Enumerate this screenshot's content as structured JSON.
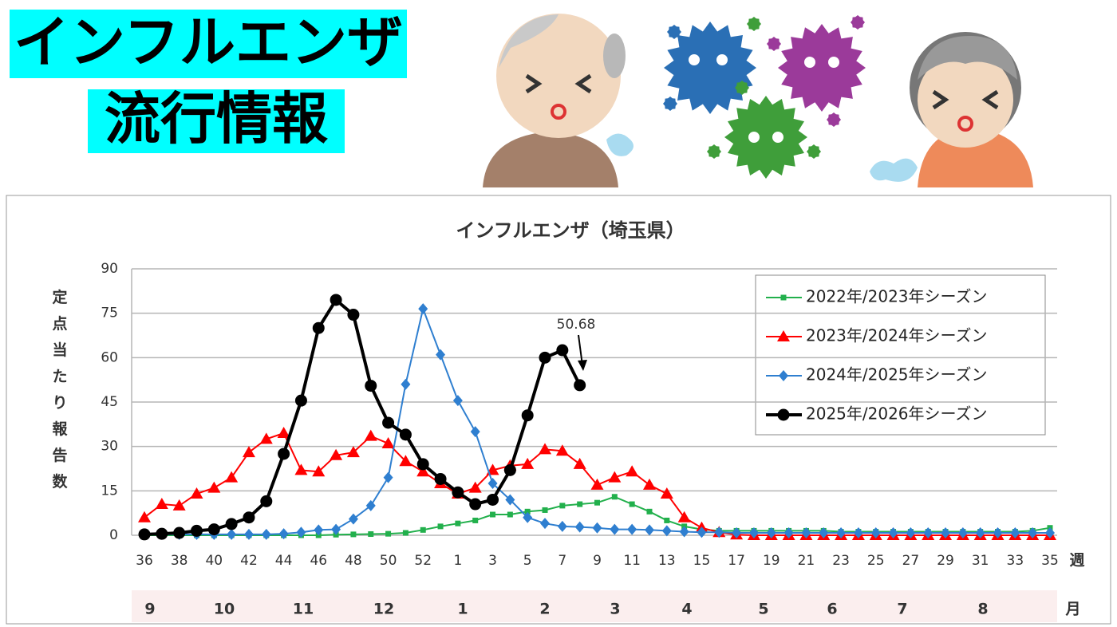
{
  "header": {
    "title": "インフルエンザ",
    "subtitle": "流行情報"
  },
  "chart_data": {
    "type": "line",
    "title": "インフルエンザ（埼玉県）",
    "ylabel": "定点当たり報告数",
    "xlabel": "週",
    "categories": [
      "36",
      null,
      "38",
      null,
      "40",
      null,
      "42",
      null,
      "44",
      null,
      "46",
      null,
      "48",
      null,
      "50",
      null,
      "52",
      null,
      "1",
      null,
      "3",
      null,
      "5",
      null,
      "7",
      null,
      "9",
      null,
      "11",
      null,
      "13",
      null,
      "15",
      null,
      "17",
      null,
      "19",
      null,
      "21",
      null,
      "23",
      null,
      "25",
      null,
      "27",
      null,
      "29",
      null,
      "31",
      null,
      "33",
      null,
      "35"
    ],
    "months": [
      "9",
      "10",
      "11",
      "12",
      "1",
      "2",
      "3",
      "4",
      "5",
      "6",
      "7",
      "8"
    ],
    "months_label": "月",
    "ylim": [
      0,
      90
    ],
    "yticks": [
      0,
      15,
      30,
      45,
      60,
      75,
      90
    ],
    "grid": true,
    "legend": "upper right",
    "series": [
      {
        "name": "2022年/2023年シーズン",
        "color": "#22b04c",
        "marker": "square",
        "values": [
          0,
          0,
          0,
          0,
          0,
          0,
          0,
          0,
          0,
          0,
          0,
          0.2,
          0.3,
          0.4,
          0.5,
          0.8,
          1.8,
          3,
          4,
          5,
          7,
          7,
          8,
          8.5,
          10,
          10.5,
          11,
          13,
          10.5,
          8,
          5,
          3,
          2,
          1.5,
          1.5,
          1.5,
          1.5,
          1.5,
          1.5,
          1.5,
          1.2,
          1.2,
          1.2,
          1.2,
          1.2,
          1.2,
          1.2,
          1.2,
          1.2,
          1.2,
          1.2,
          1.5,
          2.5
        ]
      },
      {
        "name": "2023年/2024年シーズン",
        "color": "#ff0000",
        "marker": "triangle",
        "values": [
          6,
          10.5,
          10,
          14,
          16,
          19.5,
          28,
          32.5,
          34.5,
          22,
          21.5,
          27,
          28,
          33.5,
          31,
          25,
          21.5,
          17.5,
          14,
          16,
          22,
          23.5,
          24,
          29,
          28.5,
          24,
          17,
          19.5,
          21.5,
          17,
          14,
          6,
          2.5,
          1,
          0.2,
          0,
          0,
          0,
          0,
          0,
          0,
          0,
          0,
          0,
          0,
          0,
          0,
          0,
          0,
          0,
          0,
          0,
          0
        ]
      },
      {
        "name": "2024年/2025年シーズン",
        "color": "#2f7fd0",
        "marker": "diamond",
        "values": [
          0.3,
          0.3,
          0.3,
          0.3,
          0.3,
          0.3,
          0.3,
          0.3,
          0.5,
          1,
          1.8,
          2,
          5.5,
          10,
          19.5,
          51,
          76.5,
          61,
          45.5,
          35,
          17.5,
          12,
          6,
          4,
          3,
          2.8,
          2.5,
          2,
          2,
          1.8,
          1.5,
          1.2,
          1,
          1,
          0.8,
          0.8,
          0.8,
          0.8,
          0.8,
          0.8,
          0.8,
          0.8,
          0.8,
          0.8,
          0.8,
          0.8,
          0.8,
          0.8,
          0.8,
          0.8,
          0.8,
          0.8,
          0.8
        ]
      },
      {
        "name": "2025年/2026年シーズン",
        "color": "#000000",
        "marker": "circle",
        "values": [
          0.3,
          0.5,
          0.8,
          1.5,
          2,
          3.8,
          6,
          11.5,
          27.5,
          45.5,
          70,
          79.5,
          74.5,
          50.5,
          38,
          34,
          24,
          19,
          14.5,
          10.5,
          12,
          22,
          40.5,
          60,
          62.5,
          50.68,
          null,
          null,
          null,
          null,
          null,
          null,
          null,
          null,
          null,
          null,
          null,
          null,
          null,
          null,
          null,
          null,
          null,
          null,
          null,
          null,
          null,
          null,
          null,
          null,
          null,
          null,
          null
        ]
      }
    ],
    "annotation": "50.68"
  }
}
